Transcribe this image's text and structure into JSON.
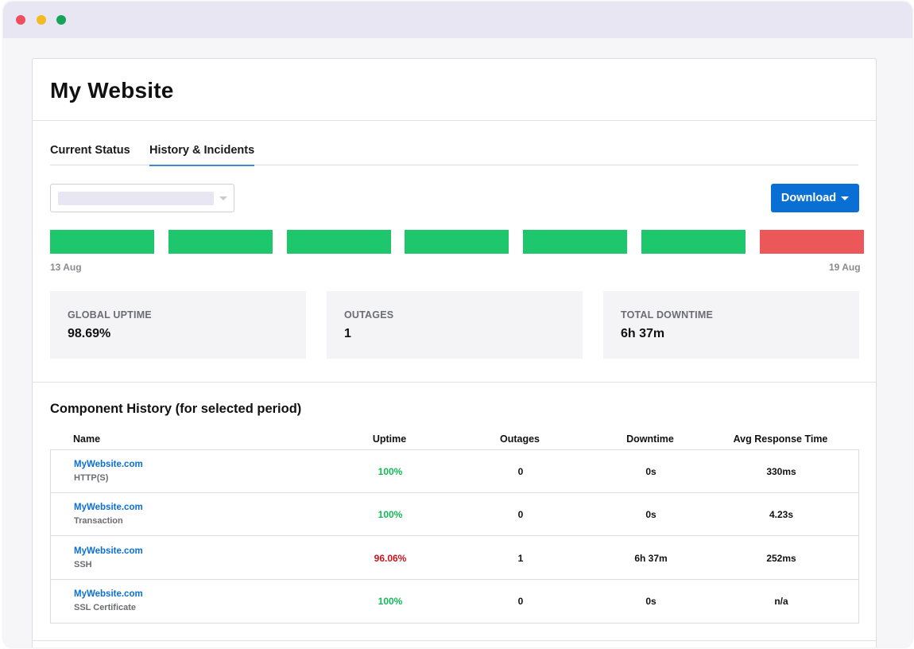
{
  "page": {
    "title": "My Website"
  },
  "tabs": [
    {
      "label": "Current Status",
      "active": false
    },
    {
      "label": "History & Incidents",
      "active": true
    }
  ],
  "period_select": {
    "selected_value": ""
  },
  "download_button": {
    "label": "Download",
    "icon": "caret-down-icon"
  },
  "timeline": {
    "days": [
      {
        "status": "up",
        "color": "#1ec76b"
      },
      {
        "status": "up",
        "color": "#1ec76b"
      },
      {
        "status": "up",
        "color": "#1ec76b"
      },
      {
        "status": "up",
        "color": "#1ec76b"
      },
      {
        "status": "up",
        "color": "#1ec76b"
      },
      {
        "status": "up",
        "color": "#1ec76b"
      },
      {
        "status": "down",
        "color": "#ec585a"
      }
    ],
    "start_label": "13 Aug",
    "end_label": "19 Aug"
  },
  "stats": [
    {
      "label": "GLOBAL UPTIME",
      "value": "98.69%"
    },
    {
      "label": "OUTAGES",
      "value": "1"
    },
    {
      "label": "TOTAL DOWNTIME",
      "value": "6h 37m"
    }
  ],
  "component_history": {
    "title": "Component History (for selected period)",
    "columns": [
      "Name",
      "Uptime",
      "Outages",
      "Downtime",
      "Avg Response Time"
    ],
    "rows": [
      {
        "name": "MyWebsite.com",
        "type": "HTTP(S)",
        "uptime": "100%",
        "uptime_color": "#13b955",
        "outages": "0",
        "downtime": "0s",
        "avg_response": "330ms"
      },
      {
        "name": "MyWebsite.com",
        "type": "Transaction",
        "uptime": "100%",
        "uptime_color": "#13b955",
        "outages": "0",
        "downtime": "0s",
        "avg_response": "4.23s"
      },
      {
        "name": "MyWebsite.com",
        "type": "SSH",
        "uptime": "96.06%",
        "uptime_color": "#c6161c",
        "outages": "1",
        "downtime": "6h 37m",
        "avg_response": "252ms"
      },
      {
        "name": "MyWebsite.com",
        "type": "SSL Certificate",
        "uptime": "100%",
        "uptime_color": "#13b955",
        "outages": "0",
        "downtime": "0s",
        "avg_response": "n/a"
      }
    ]
  },
  "colors": {
    "accent": "#0a6fd4",
    "tab_underline": "#3e86d8",
    "up": "#1ec76b",
    "down": "#ec585a"
  }
}
